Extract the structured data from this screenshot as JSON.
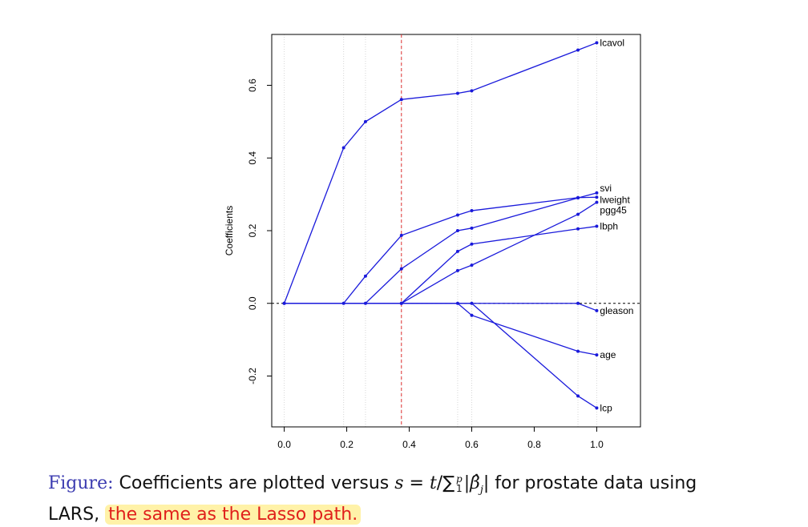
{
  "chart_data": {
    "type": "line",
    "title": "",
    "xlabel": "",
    "ylabel": "Coefficients",
    "xlim": [
      -0.04,
      1.14
    ],
    "ylim": [
      -0.34,
      0.74
    ],
    "x_ticks": [
      0.0,
      0.2,
      0.4,
      0.6,
      0.8,
      1.0
    ],
    "x_tick_labels": [
      "0.0",
      "0.2",
      "0.4",
      "0.6",
      "0.8",
      "1.0"
    ],
    "y_ticks": [
      -0.2,
      0.0,
      0.2,
      0.4,
      0.6
    ],
    "y_tick_labels": [
      "-0.2",
      "0.0",
      "0.2",
      "0.4",
      "0.6"
    ],
    "grid": "vertical dotted at steps",
    "steps": [
      0.0,
      0.19,
      0.26,
      0.375,
      0.555,
      0.6,
      0.94,
      1.0
    ],
    "vline": 0.375,
    "hline": 0.0,
    "colors": {
      "line": "#1a1adb",
      "vline": "#e03030",
      "grid": "#d6d6d6"
    },
    "series": [
      {
        "name": "lcavol",
        "points": [
          [
            0,
            0
          ],
          [
            0.19,
            0.428
          ],
          [
            0.26,
            0.5
          ],
          [
            0.375,
            0.561
          ],
          [
            0.555,
            0.578
          ],
          [
            0.6,
            0.585
          ],
          [
            0.94,
            0.697
          ],
          [
            1.0,
            0.717
          ]
        ]
      },
      {
        "name": "svi",
        "points": [
          [
            0,
            0
          ],
          [
            0.26,
            0
          ],
          [
            0.375,
            0.095
          ],
          [
            0.555,
            0.2
          ],
          [
            0.6,
            0.207
          ],
          [
            0.94,
            0.29
          ],
          [
            1.0,
            0.304
          ]
        ]
      },
      {
        "name": "lweight",
        "points": [
          [
            0,
            0
          ],
          [
            0.19,
            0
          ],
          [
            0.26,
            0.075
          ],
          [
            0.375,
            0.187
          ],
          [
            0.555,
            0.243
          ],
          [
            0.6,
            0.255
          ],
          [
            0.94,
            0.291
          ],
          [
            1.0,
            0.292
          ]
        ]
      },
      {
        "name": "pgg45",
        "points": [
          [
            0,
            0
          ],
          [
            0.375,
            0
          ],
          [
            0.555,
            0.09
          ],
          [
            0.6,
            0.105
          ],
          [
            0.94,
            0.245
          ],
          [
            1.0,
            0.278
          ]
        ]
      },
      {
        "name": "lbph",
        "points": [
          [
            0,
            0
          ],
          [
            0.375,
            0
          ],
          [
            0.555,
            0.143
          ],
          [
            0.6,
            0.163
          ],
          [
            0.94,
            0.205
          ],
          [
            1.0,
            0.212
          ]
        ]
      },
      {
        "name": "gleason",
        "points": [
          [
            0,
            0
          ],
          [
            0.94,
            0
          ],
          [
            1.0,
            -0.02
          ]
        ]
      },
      {
        "name": "age",
        "points": [
          [
            0,
            0
          ],
          [
            0.555,
            0
          ],
          [
            0.6,
            -0.033
          ],
          [
            0.94,
            -0.132
          ],
          [
            1.0,
            -0.142
          ]
        ]
      },
      {
        "name": "lcp",
        "points": [
          [
            0,
            0
          ],
          [
            0.6,
            0
          ],
          [
            0.94,
            -0.255
          ],
          [
            1.0,
            -0.288
          ]
        ]
      }
    ]
  },
  "caption": {
    "prefix": "Figure:",
    "text_before": " Coefficients are plotted versus ",
    "formula_s": "s",
    "formula_eq": " = ",
    "formula_t": "t",
    "formula_div": "/",
    "formula_sum": "∑",
    "formula_sum_upper": "p",
    "formula_sum_lower": "1",
    "formula_abs": "|β̂",
    "formula_sub_j": "j",
    "formula_abs_close": "|",
    "text_after": " for prostate data using",
    "line2_start": "LARS, ",
    "highlight": "the same as the Lasso path."
  }
}
